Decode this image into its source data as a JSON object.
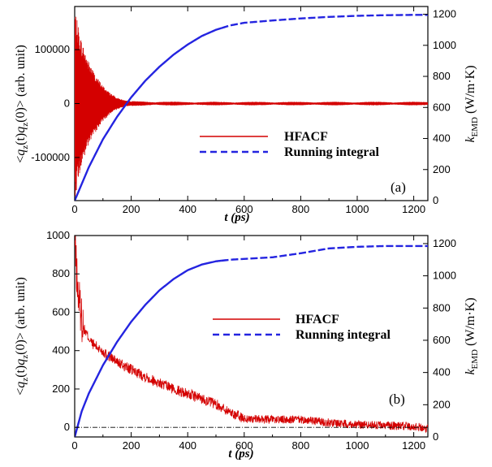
{
  "figure": {
    "panels": [
      {
        "panel_label": "(a)",
        "xlabel": "t (ps)",
        "ylabel_left": "<qz(t)qz(0)> (arb. unit)",
        "ylabel_right": "kEMD (W/m·K)",
        "legend": [
          "HFACF",
          "Running integral"
        ],
        "colors": {
          "hfacf": "#d40000",
          "running": "#2424e0"
        }
      },
      {
        "panel_label": "(b)",
        "xlabel": "t (ps)",
        "ylabel_left": "<qz(t)qz(0)> (arb. unit)",
        "ylabel_right": "kEMD (W/m·K)",
        "legend": [
          "HFACF",
          "Running integral"
        ],
        "colors": {
          "hfacf": "#d40000",
          "running": "#2424e0"
        }
      }
    ]
  },
  "chart_data": [
    {
      "type": "line",
      "panel": "(a)",
      "xlabel": "t (ps)",
      "ylabel": "<qz(t)qz(0)> (arb. unit)",
      "y2label": "kEMD (W/m·K)",
      "xlim": [
        0,
        1250
      ],
      "ylim": [
        -180000,
        180000
      ],
      "y2lim": [
        0,
        1250
      ],
      "xticks": [
        0,
        200,
        400,
        600,
        800,
        1000,
        1200
      ],
      "yticks": [
        -100000,
        0,
        100000
      ],
      "y2ticks": [
        0,
        200,
        400,
        600,
        800,
        1000,
        1200
      ],
      "legend_position": "center-right",
      "series": [
        {
          "name": "HFACF",
          "axis": "left",
          "style": "solid",
          "description_points": {
            "t": [
              0,
              10,
              25,
              50,
              75,
              100,
              125,
              150,
              175,
              200,
              300,
              400,
              600,
              800,
              1000,
              1250
            ],
            "envelope": [
              178000,
              150000,
              115000,
              78000,
              52000,
              33000,
              20000,
              11000,
              6000,
              4000,
              3500,
              3000,
              3000,
              3000,
              3000,
              3000
            ]
          }
        },
        {
          "name": "Running integral",
          "axis": "right",
          "style": "solid-then-dashed",
          "x": [
            0,
            50,
            100,
            150,
            200,
            250,
            300,
            350,
            400,
            450,
            500,
            550,
            600,
            700,
            800,
            900,
            1000,
            1100,
            1200,
            1250
          ],
          "y": [
            0,
            215,
            395,
            540,
            665,
            772,
            862,
            940,
            1005,
            1060,
            1100,
            1128,
            1145,
            1160,
            1173,
            1183,
            1190,
            1194,
            1196,
            1196
          ]
        }
      ]
    },
    {
      "type": "line",
      "panel": "(b)",
      "xlabel": "t (ps)",
      "ylabel": "<qz(t)qz(0)> (arb. unit)",
      "y2label": "kEMD (W/m·K)",
      "xlim": [
        0,
        1250
      ],
      "ylim": [
        -50,
        1000
      ],
      "y2lim": [
        0,
        1250
      ],
      "xticks": [
        0,
        200,
        400,
        600,
        800,
        1000,
        1200
      ],
      "yticks": [
        0,
        200,
        400,
        600,
        800,
        1000
      ],
      "y2ticks": [
        0,
        200,
        400,
        600,
        800,
        1000,
        1200
      ],
      "legend_position": "center-right",
      "series": [
        {
          "name": "HFACF",
          "axis": "left",
          "style": "solid",
          "x": [
            0,
            10,
            30,
            60,
            100,
            150,
            200,
            250,
            300,
            350,
            400,
            450,
            500,
            550,
            600,
            700,
            800,
            900,
            1000,
            1100,
            1200,
            1250
          ],
          "y": [
            1000,
            720,
            520,
            440,
            395,
            340,
            300,
            265,
            230,
            200,
            175,
            150,
            120,
            80,
            45,
            40,
            40,
            25,
            15,
            10,
            5,
            -5
          ]
        },
        {
          "name": "Running integral",
          "axis": "right",
          "style": "solid-then-dashed",
          "x": [
            0,
            25,
            50,
            100,
            150,
            200,
            250,
            300,
            350,
            400,
            450,
            500,
            550,
            600,
            700,
            800,
            900,
            1000,
            1100,
            1200,
            1250
          ],
          "y": [
            0,
            160,
            270,
            445,
            590,
            715,
            820,
            910,
            980,
            1035,
            1070,
            1090,
            1100,
            1105,
            1115,
            1140,
            1170,
            1180,
            1185,
            1185,
            1185
          ]
        },
        {
          "name": "",
          "axis": "left",
          "style": "dash-dot",
          "x": [
            0,
            1250
          ],
          "y": [
            0,
            0
          ]
        }
      ]
    }
  ]
}
